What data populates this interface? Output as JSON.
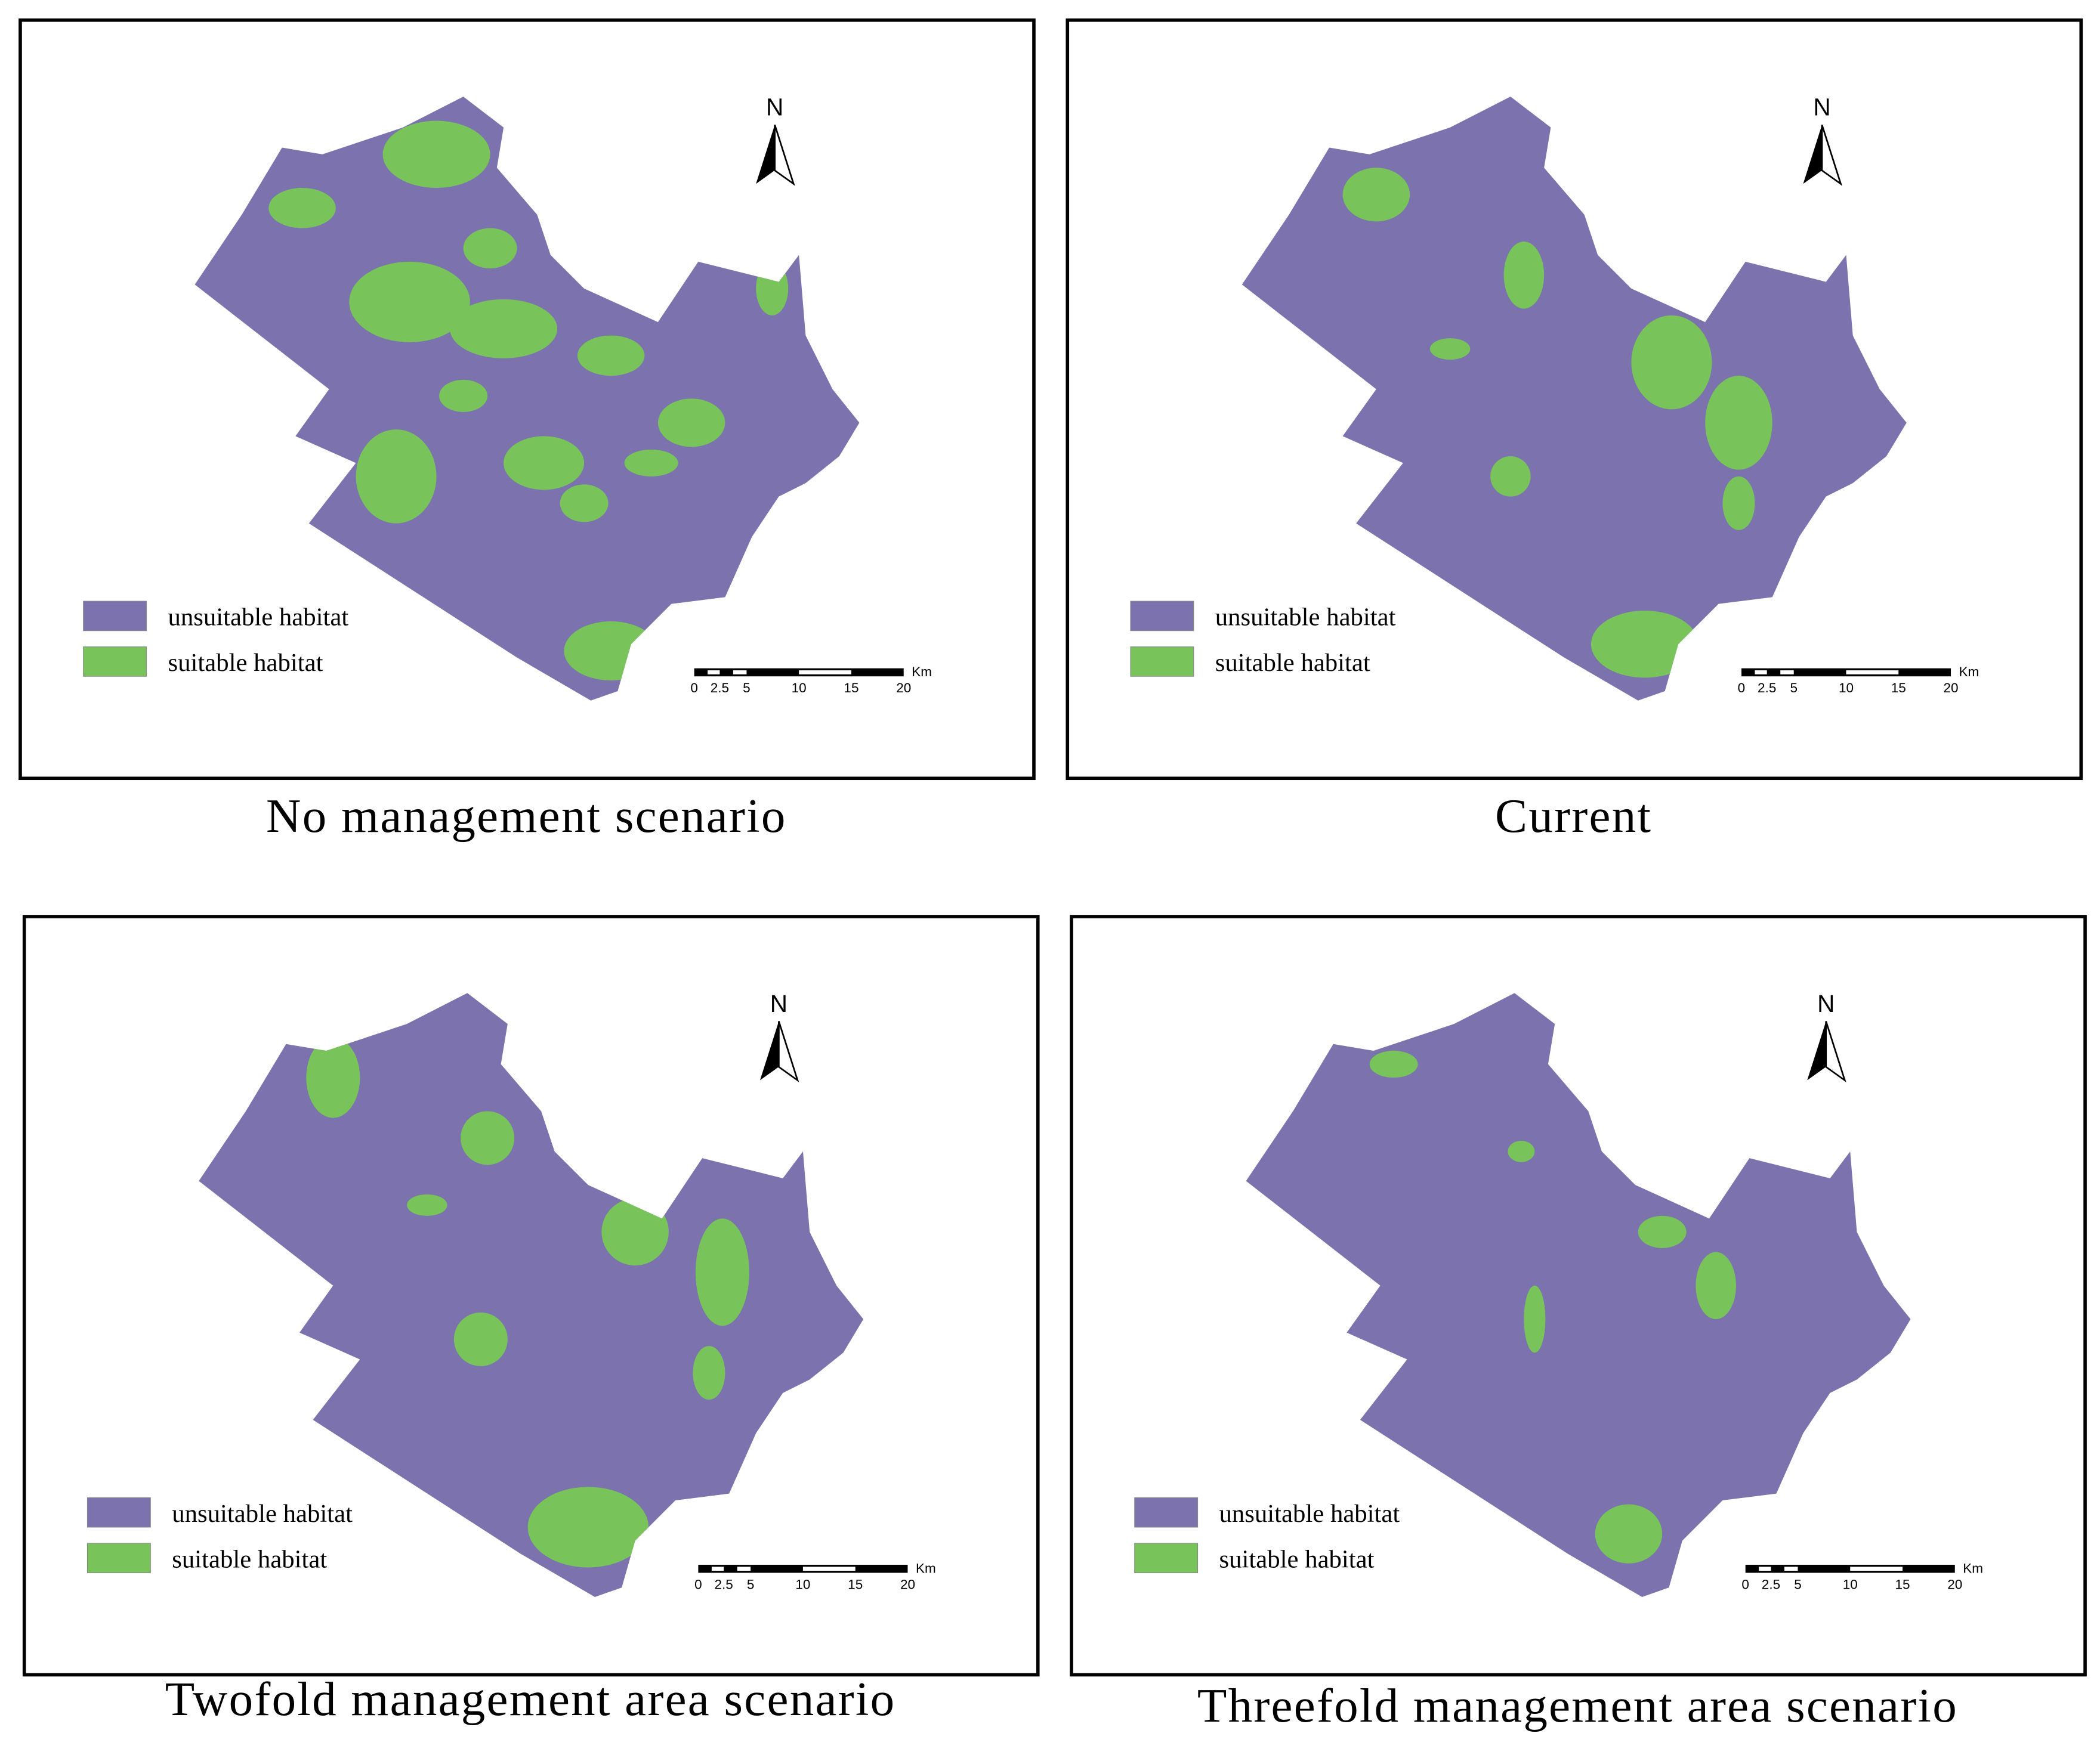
{
  "panels": [
    {
      "title": "No management scenario",
      "legend": [
        "unsuitable habitat",
        "suitable habitat"
      ],
      "north": "N",
      "scale": {
        "labels": [
          "0",
          "2.5",
          "5",
          "10",
          "15",
          "20"
        ],
        "unit": "Km"
      }
    },
    {
      "title": "Current",
      "legend": [
        "unsuitable habitat",
        "suitable habitat"
      ],
      "north": "N",
      "scale": {
        "labels": [
          "0",
          "2.5",
          "5",
          "10",
          "15",
          "20"
        ],
        "unit": "Km"
      }
    },
    {
      "title": "Twofold management area scenario",
      "legend": [
        "unsuitable habitat",
        "suitable habitat"
      ],
      "north": "N",
      "scale": {
        "labels": [
          "0",
          "2.5",
          "5",
          "10",
          "15",
          "20"
        ],
        "unit": "Km"
      }
    },
    {
      "title": "Threefold management area scenario",
      "legend": [
        "unsuitable habitat",
        "suitable habitat"
      ],
      "north": "N",
      "scale": {
        "labels": [
          "0",
          "2.5",
          "5",
          "10",
          "15",
          "20"
        ],
        "unit": "Km"
      }
    }
  ]
}
